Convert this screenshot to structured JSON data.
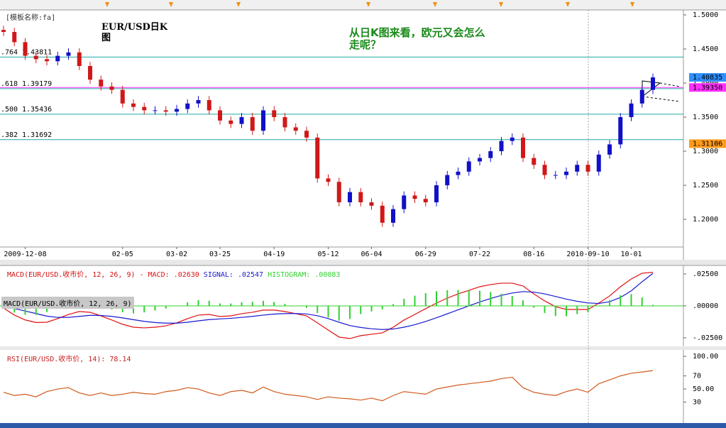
{
  "chart_data": [
    {
      "type": "candlestick",
      "template": "[模板名称:fa]",
      "title": "EUR/USD日K图",
      "annotation": "从日K图来看，欧元又会怎么走呢？",
      "categories": [
        null,
        null,
        "2009-12-08",
        null,
        null,
        null,
        null,
        null,
        null,
        null,
        null,
        "02-05",
        null,
        null,
        null,
        null,
        "03-02",
        null,
        null,
        null,
        "03-25",
        null,
        null,
        null,
        null,
        "04-19",
        null,
        null,
        null,
        null,
        "05-12",
        null,
        null,
        null,
        "06-04",
        null,
        null,
        null,
        null,
        "06-29",
        null,
        null,
        null,
        null,
        "07-22",
        null,
        null,
        null,
        null,
        "08-16",
        null,
        null,
        null,
        null,
        "2010-09-10",
        null,
        null,
        null,
        "10-01",
        null,
        null
      ],
      "open": [
        1.478,
        1.475,
        1.46,
        1.44,
        1.435,
        1.432,
        1.44,
        1.445,
        1.425,
        1.405,
        1.395,
        1.39,
        1.37,
        1.365,
        1.36,
        1.36,
        1.358,
        1.362,
        1.37,
        1.375,
        1.36,
        1.345,
        1.34,
        1.35,
        1.33,
        1.36,
        1.35,
        1.335,
        1.33,
        1.32,
        1.26,
        1.255,
        1.225,
        1.24,
        1.225,
        1.22,
        1.195,
        1.215,
        1.235,
        1.23,
        1.225,
        1.25,
        1.265,
        1.27,
        1.285,
        1.29,
        1.3,
        1.315,
        1.32,
        1.29,
        1.28,
        1.265,
        1.265,
        1.27,
        1.28,
        1.27,
        1.295,
        1.31,
        1.35,
        1.37,
        1.39
      ],
      "high": [
        1.484,
        1.481,
        1.466,
        1.446,
        1.441,
        1.446,
        1.451,
        1.451,
        1.431,
        1.411,
        1.401,
        1.396,
        1.376,
        1.371,
        1.366,
        1.366,
        1.368,
        1.376,
        1.381,
        1.381,
        1.366,
        1.351,
        1.356,
        1.356,
        1.366,
        1.366,
        1.356,
        1.341,
        1.336,
        1.326,
        1.266,
        1.261,
        1.246,
        1.246,
        1.231,
        1.226,
        1.221,
        1.241,
        1.241,
        1.236,
        1.256,
        1.271,
        1.276,
        1.291,
        1.296,
        1.306,
        1.321,
        1.326,
        1.326,
        1.296,
        1.286,
        1.271,
        1.276,
        1.286,
        1.286,
        1.301,
        1.316,
        1.356,
        1.376,
        1.396,
        1.414
      ],
      "low": [
        1.469,
        1.454,
        1.434,
        1.429,
        1.426,
        1.426,
        1.434,
        1.419,
        1.399,
        1.389,
        1.384,
        1.364,
        1.359,
        1.354,
        1.354,
        1.352,
        1.352,
        1.356,
        1.364,
        1.354,
        1.339,
        1.334,
        1.334,
        1.324,
        1.324,
        1.344,
        1.329,
        1.324,
        1.314,
        1.254,
        1.249,
        1.219,
        1.219,
        1.219,
        1.214,
        1.189,
        1.189,
        1.209,
        1.224,
        1.219,
        1.219,
        1.244,
        1.259,
        1.264,
        1.279,
        1.284,
        1.294,
        1.309,
        1.284,
        1.274,
        1.259,
        1.259,
        1.259,
        1.264,
        1.264,
        1.264,
        1.289,
        1.304,
        1.344,
        1.364,
        1.384
      ],
      "close": [
        1.475,
        1.46,
        1.44,
        1.435,
        1.432,
        1.44,
        1.445,
        1.425,
        1.405,
        1.395,
        1.39,
        1.37,
        1.365,
        1.36,
        1.36,
        1.358,
        1.362,
        1.37,
        1.375,
        1.36,
        1.345,
        1.34,
        1.35,
        1.33,
        1.36,
        1.35,
        1.335,
        1.33,
        1.32,
        1.26,
        1.255,
        1.225,
        1.24,
        1.225,
        1.22,
        1.195,
        1.215,
        1.235,
        1.23,
        1.225,
        1.25,
        1.265,
        1.27,
        1.285,
        1.29,
        1.3,
        1.315,
        1.32,
        1.29,
        1.28,
        1.265,
        1.265,
        1.27,
        1.28,
        1.27,
        1.295,
        1.31,
        1.35,
        1.37,
        1.39,
        1.40835
      ],
      "up_color": "#1010c8",
      "down_color": "#d01818",
      "ylim": [
        1.1594,
        1.5073
      ],
      "yticks": [
        {
          "value": 1.5,
          "label": "1.5000"
        },
        {
          "value": 1.45,
          "label": "1.4500"
        },
        {
          "value": 1.4,
          "label": "1.4000"
        },
        {
          "value": 1.35,
          "label": "1.3500"
        },
        {
          "value": 1.3,
          "label": "1.3000"
        },
        {
          "value": 1.25,
          "label": "1.2500"
        },
        {
          "value": 1.2,
          "label": "1.2000"
        }
      ],
      "levels": [
        {
          "name": ".764",
          "value": 1.43811
        },
        {
          "name": ".618",
          "value": 1.39179
        },
        {
          "name": ".500",
          "value": 1.35436
        },
        {
          "name": ".382",
          "value": 1.31692
        }
      ],
      "level_color": "#20a8a8",
      "markers": [
        {
          "value": 1.40835,
          "label": "1.40835",
          "color": "#3090ff"
        },
        {
          "value": 1.3935,
          "label": "1.39350",
          "color": "#ff30ff"
        },
        {
          "value": 1.31106,
          "label": "1.31106",
          "color": "#ff9a1a"
        }
      ]
    },
    {
      "type": "line",
      "title": "MACD(EUR/USD.收市价, 12, 26, 9) -",
      "box_label": "MACD(EUR/USD.收市价, 12, 26, 9)",
      "ylim": [
        -0.0317,
        0.03
      ],
      "yticks": [
        {
          "value": 0.025,
          "label": ".02500"
        },
        {
          "value": 0,
          "label": ".00000"
        },
        {
          "value": -0.025,
          "label": "-.02500"
        }
      ],
      "series": [
        {
          "name": "MACD:",
          "color": "#e01010",
          "last_label": ".02630",
          "values": [
            -0.0017,
            -0.0072,
            -0.011,
            -0.013,
            -0.0128,
            -0.01,
            -0.0067,
            -0.0044,
            -0.005,
            -0.0078,
            -0.011,
            -0.0144,
            -0.0167,
            -0.0172,
            -0.0167,
            -0.0156,
            -0.0133,
            -0.01,
            -0.0072,
            -0.0067,
            -0.0083,
            -0.0078,
            -0.0061,
            -0.005,
            -0.0033,
            -0.0033,
            -0.0044,
            -0.0061,
            -0.0078,
            -0.0133,
            -0.0189,
            -0.0244,
            -0.0256,
            -0.0233,
            -0.0222,
            -0.0211,
            -0.0167,
            -0.0111,
            -0.0067,
            -0.0022,
            0.0022,
            0.0061,
            0.0094,
            0.0122,
            0.015,
            0.0167,
            0.0178,
            0.0178,
            0.0156,
            0.0094,
            0.0039,
            -0.0006,
            -0.0028,
            -0.0028,
            -0.0028,
            0.0022,
            0.0078,
            0.015,
            0.0211,
            0.0256,
            0.0263
          ]
        },
        {
          "name": "SIGNAL:",
          "color": "#1818d0",
          "last_label": ".02547",
          "values": [
            -0.0005,
            -0.002,
            -0.004,
            -0.006,
            -0.008,
            -0.009,
            -0.009,
            -0.0082,
            -0.0074,
            -0.0075,
            -0.0082,
            -0.0094,
            -0.0108,
            -0.0121,
            -0.013,
            -0.0135,
            -0.0135,
            -0.0128,
            -0.0117,
            -0.0107,
            -0.0102,
            -0.0097,
            -0.009,
            -0.0082,
            -0.0072,
            -0.0064,
            -0.006,
            -0.006,
            -0.0063,
            -0.0077,
            -0.0099,
            -0.0128,
            -0.0154,
            -0.0169,
            -0.0179,
            -0.0185,
            -0.0181,
            -0.0167,
            -0.0147,
            -0.0122,
            -0.0093,
            -0.0062,
            -0.0031,
            0,
            0.0031,
            0.0058,
            0.0082,
            0.0101,
            0.0112,
            0.0108,
            0.0094,
            0.0074,
            0.0053,
            0.0036,
            0.0023,
            0.0019,
            0.0033,
            0.0066,
            0.0118,
            0.0189,
            0.02547
          ]
        },
        {
          "name": "HISTOGRAM:",
          "color": "#30d030",
          "type": "bar",
          "last_label": ".00083",
          "values": [
            -0.0012,
            -0.0052,
            -0.007,
            -0.007,
            -0.0048,
            -0.001,
            0.0023,
            0.0038,
            0.0024,
            -0.0003,
            -0.0028,
            -0.005,
            -0.0059,
            -0.0051,
            -0.0037,
            -0.0021,
            0.0002,
            0.0028,
            0.0045,
            0.004,
            0.0019,
            0.0019,
            0.0029,
            0.0032,
            0.0039,
            0.0031,
            0.0016,
            -0.0001,
            -0.0015,
            -0.0056,
            -0.009,
            -0.0116,
            -0.0102,
            -0.0064,
            -0.0043,
            -0.0026,
            0.0014,
            0.0056,
            0.008,
            0.01,
            0.0115,
            0.0123,
            0.0125,
            0.0122,
            0.0119,
            0.0109,
            0.0096,
            0.0077,
            0.0044,
            -0.0014,
            -0.0055,
            -0.008,
            -0.0081,
            -0.0064,
            -0.0051,
            0.0003,
            0.0045,
            0.0084,
            0.0093,
            0.0067,
            0.00083
          ]
        }
      ]
    },
    {
      "type": "line",
      "title": "RSI(EUR/USD.收市价, 14):",
      "ylim": [
        -1,
        107.6
      ],
      "yticks": [
        {
          "value": 100,
          "label": "100.00"
        },
        70,
        {
          "value": 50,
          "label": "50.00"
        },
        30
      ],
      "series": [
        {
          "name": "RSI",
          "color": "#d05a1a",
          "values": [
            45,
            40,
            42,
            38,
            46,
            50,
            52,
            44,
            40,
            44,
            40,
            42,
            45,
            43,
            42,
            46,
            48,
            52,
            50,
            44,
            40,
            46,
            48,
            44,
            53,
            46,
            42,
            40,
            38,
            34,
            38,
            36,
            35,
            33,
            36,
            32,
            40,
            46,
            44,
            42,
            50,
            53,
            56,
            58,
            60,
            62,
            66,
            68,
            52,
            45,
            42,
            40,
            46,
            50,
            45,
            58,
            64,
            70,
            74,
            76,
            78.14
          ]
        }
      ]
    }
  ]
}
